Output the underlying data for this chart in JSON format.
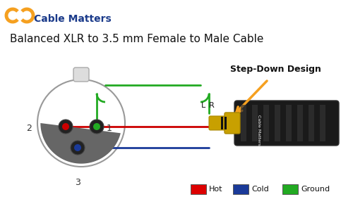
{
  "title": "Balanced XLR to 3.5 mm Female to Male Cable",
  "brand_name": "Cable Matters",
  "step_down_label": "Step-Down Design",
  "legend_items": [
    {
      "label": "Hot",
      "color": "#dd0000"
    },
    {
      "label": "Cold",
      "color": "#1a3a99"
    },
    {
      "label": "Ground",
      "color": "#22aa22"
    }
  ],
  "background": "#ffffff",
  "logo_color_orange": "#f5a020",
  "logo_color_blue": "#1a3a8a",
  "xlr_body_color": "#666666",
  "xlr_edge_color": "#bbbbbb",
  "connector_body_color": "#1a1a1a",
  "connector_tip_color": "#c8a000",
  "wire_red": "#cc0000",
  "wire_blue": "#1a3a99",
  "wire_green": "#22aa22",
  "arrow_color": "#f5a020"
}
